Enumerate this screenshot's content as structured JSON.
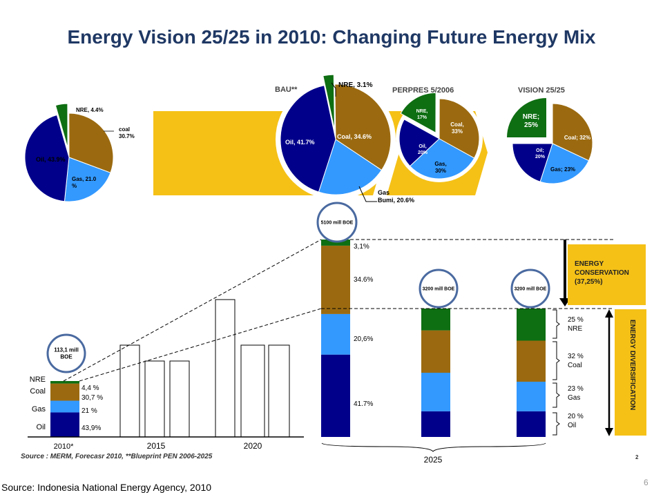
{
  "title": "Energy Vision 25/25 in 2010: Changing Future Energy Mix",
  "footer": {
    "source": "Source: Indonesia National Energy Agency, 2010",
    "page": "6"
  },
  "inner_source": "Source : MERM, Forecasr 2010, **Blueprint PEN 2006-2025",
  "inner_page": "2",
  "colors": {
    "nre": "#0e6e12",
    "coal": "#9b6a10",
    "gas": "#3399ff",
    "oil": "#00008b",
    "arrow": "#f5c117",
    "title": "#1f3864",
    "circle": "#4a6aa0"
  },
  "chart_data": [
    {
      "type": "pie",
      "label": "",
      "slices": [
        {
          "name": "NRE",
          "value": 4.4,
          "text": "NRE, 4.4%"
        },
        {
          "name": "coal",
          "value": 30.7,
          "text": "coal 30.7%"
        },
        {
          "name": "Gas",
          "value": 21.0,
          "text": "Gas, 21.0 %"
        },
        {
          "name": "Oil",
          "value": 43.9,
          "text": "Oil, 43.9%"
        }
      ]
    },
    {
      "type": "pie",
      "label": "BAU**",
      "slices": [
        {
          "name": "NRE",
          "value": 3.1,
          "text": "NRE, 3.1%"
        },
        {
          "name": "Coal",
          "value": 34.6,
          "text": "Coal, 34.6%"
        },
        {
          "name": "Gas Bumi",
          "value": 20.6,
          "text": "Gas Bumi, 20.6%"
        },
        {
          "name": "Oil",
          "value": 41.7,
          "text": "Oil, 41.7%"
        }
      ]
    },
    {
      "type": "pie",
      "label": "PERPRES 5/2006",
      "slices": [
        {
          "name": "NRE",
          "value": 17,
          "text": "NRE, 17%"
        },
        {
          "name": "Coal",
          "value": 33,
          "text": "Coal, 33%"
        },
        {
          "name": "Gas",
          "value": 30,
          "text": "Gas, 30%"
        },
        {
          "name": "Oil",
          "value": 20,
          "text": "Oil, 20%"
        }
      ]
    },
    {
      "type": "pie",
      "label": "VISION 25/25",
      "slices": [
        {
          "name": "NRE",
          "value": 25,
          "text": "NRE; 25%"
        },
        {
          "name": "Coal",
          "value": 32,
          "text": "Coal; 32%"
        },
        {
          "name": "Gas",
          "value": 23,
          "text": "Gas; 23%"
        },
        {
          "name": "Oil",
          "value": 20,
          "text": "Oil; 20%"
        }
      ]
    },
    {
      "type": "bar",
      "stacked": true,
      "x_labels": [
        "2010*",
        "2015",
        "2020",
        "2025"
      ],
      "stacked_bars": [
        {
          "label": "2010*",
          "total_text": "113,1 mill BOE",
          "segments": [
            {
              "name": "Oil",
              "label": "Oil",
              "value": 43.9,
              "text": "43,9%"
            },
            {
              "name": "Gas",
              "label": "Gas",
              "value": 21,
              "text": "21 %"
            },
            {
              "name": "Coal",
              "label": "Coal",
              "value": 30.7,
              "text": "30,7 %"
            },
            {
              "name": "NRE",
              "label": "NRE",
              "value": 4.4,
              "text": "4,4 %"
            }
          ]
        },
        {
          "label": "2025 BAU",
          "total_text": "5100 mill BOE",
          "segments": [
            {
              "name": "Oil",
              "value": 41.7,
              "text": "41.7%"
            },
            {
              "name": "Gas",
              "value": 20.6,
              "text": "20,6%"
            },
            {
              "name": "Coal",
              "value": 34.6,
              "text": "34.6%"
            },
            {
              "name": "NRE",
              "value": 3.1,
              "text": "3,1%"
            }
          ]
        },
        {
          "label": "2025 PERPRES",
          "total_text": "3200 mill BOE",
          "segments": [
            {
              "name": "Oil",
              "value": 20
            },
            {
              "name": "Gas",
              "value": 30
            },
            {
              "name": "Coal",
              "value": 33
            },
            {
              "name": "NRE",
              "value": 17
            }
          ]
        },
        {
          "label": "2025 VISION",
          "total_text": "3200 mill BOE",
          "segments": [
            {
              "name": "Oil",
              "value": 20,
              "text": "20 %",
              "label": "Oil"
            },
            {
              "name": "Gas",
              "value": 23,
              "text": "23 %",
              "label": "Gas"
            },
            {
              "name": "Coal",
              "value": 32,
              "text": "32 %",
              "label": "Coal"
            },
            {
              "name": "NRE",
              "value": 25,
              "text": "25 %",
              "label": "NRE"
            }
          ]
        }
      ],
      "growth_bars": [
        {
          "group": "2015",
          "count": 3
        },
        {
          "group": "2020",
          "count": 3
        }
      ],
      "callouts": {
        "conservation": [
          "ENERGY",
          "CONSERVATION",
          "(37,25%)"
        ],
        "diversification": "ENERGY DIVERSIFICATION"
      }
    }
  ]
}
